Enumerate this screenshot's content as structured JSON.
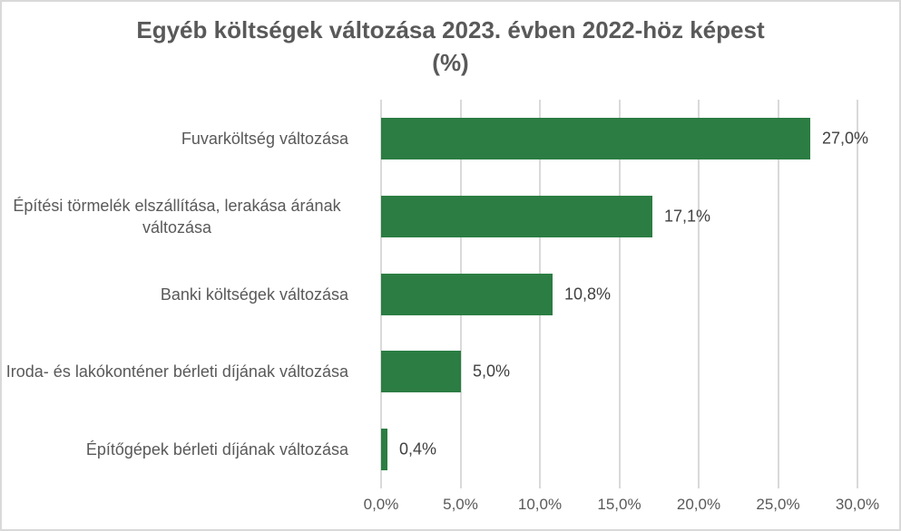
{
  "chart_data": {
    "type": "bar",
    "orientation": "horizontal",
    "title": "Egyéb költségek változása 2023. évben 2022-höz képest (%)",
    "title_lines": [
      "Egyéb költségek változása 2023. évben 2022-höz képest",
      "(%)"
    ],
    "categories": [
      "Fuvarköltség változása",
      "Építési törmelék elszállítása, lerakása árának változása",
      "Banki költségek változása",
      "Iroda- és lakókonténer bérleti díjának változása",
      "Építőgépek bérleti díjának változása"
    ],
    "values": [
      27.0,
      17.1,
      10.8,
      5.0,
      0.4
    ],
    "data_labels": [
      "27,0%",
      "17,1%",
      "10,8%",
      "5,0%",
      "0,4%"
    ],
    "xlim": [
      0,
      30
    ],
    "x_ticks": [
      0,
      5,
      10,
      15,
      20,
      25,
      30
    ],
    "x_tick_labels": [
      "0,0%",
      "5,0%",
      "10,0%",
      "15,0%",
      "20,0%",
      "25,0%",
      "30,0%"
    ],
    "grid": true,
    "legend": "none",
    "colors": {
      "bar": "#2b7d43",
      "title_text": "#595959",
      "axis_text": "#595959",
      "category_text": "#595959",
      "data_label_text": "#404040",
      "gridline": "#d9d9d9",
      "background": "#ffffff",
      "border": "#d9d9d9"
    }
  }
}
